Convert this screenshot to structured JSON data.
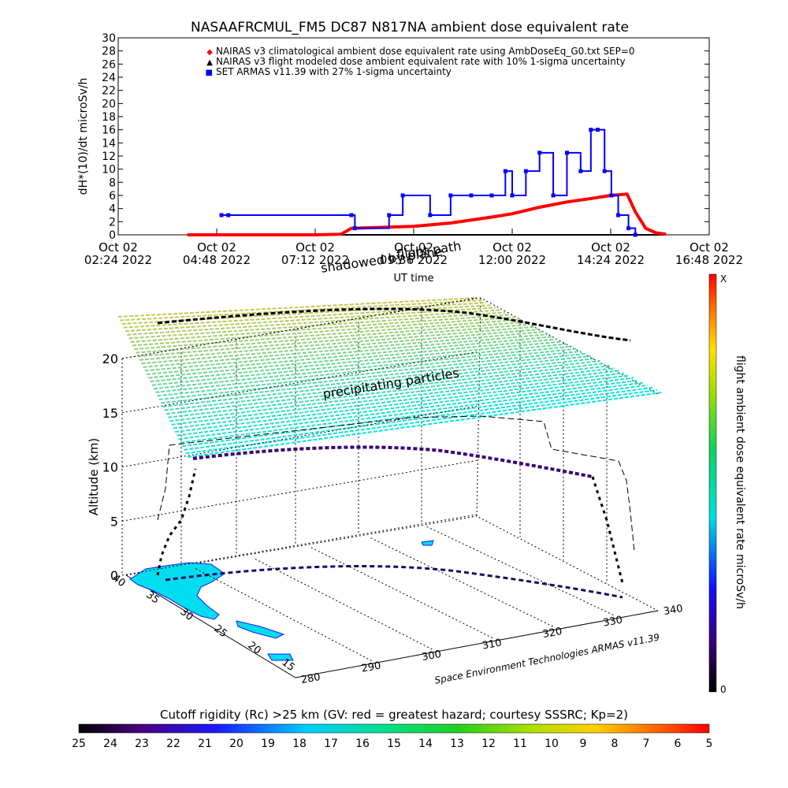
{
  "chart_data": [
    {
      "type": "line",
      "title": "NASAAFRCMUL_FM5 DC87 N817NA ambient dose equivalent rate",
      "ylabel": "dH*(10)/dt microSv/h",
      "xlabel": "UT time",
      "ylim": [
        0,
        30
      ],
      "yticks": [
        "0",
        "2",
        "4",
        "6",
        "8",
        "10",
        "12",
        "14",
        "16",
        "18",
        "20",
        "22",
        "24",
        "26",
        "28",
        "30"
      ],
      "xticks": [
        {
          "date": "Oct 02",
          "time": "02:24 2022"
        },
        {
          "date": "Oct 02",
          "time": "04:48 2022"
        },
        {
          "date": "Oct 02",
          "time": "07:12 2022"
        },
        {
          "date": "Oct 02",
          "time": "09:36 2022"
        },
        {
          "date": "Oct 02",
          "time": "12:00 2022"
        },
        {
          "date": "Oct 02",
          "time": "14:24 2022"
        },
        {
          "date": "Oct 02",
          "time": "16:48 2022"
        }
      ],
      "legend": [
        {
          "marker": "◆",
          "color": "#ff0000",
          "label": "NAIRAS v3 climatological ambient dose equivalent rate using AmbDoseEq_G0.txt SEP=0"
        },
        {
          "marker": "▲",
          "color": "#000000",
          "label": "NAIRAS v3 flight modeled dose ambient equivalent rate with 10% 1-sigma uncertainty"
        },
        {
          "marker": "■",
          "color": "#0000ff",
          "label": "SET ARMAS v11.39 with 27% 1-sigma uncertainty"
        }
      ],
      "legend_position": "top-right",
      "series": [
        {
          "name": "NAIRAS v3 climatological ambient dose equivalent rate using AmbDoseEq_G0.txt SEP=0",
          "color": "#ff0000",
          "x": [
            "04:05",
            "07:12",
            "07:50",
            "08:05",
            "09:36",
            "10:30",
            "11:30",
            "12:00",
            "12:40",
            "13:20",
            "14:00",
            "14:24",
            "14:48",
            "15:00",
            "15:15",
            "15:30",
            "15:45"
          ],
          "values": [
            0,
            0,
            0.1,
            1,
            1.3,
            1.8,
            2.7,
            3.2,
            4.2,
            5.0,
            5.6,
            6.0,
            6.2,
            3.5,
            1.0,
            0.3,
            0.1
          ]
        },
        {
          "name": "SET ARMAS v11.39 with 27% 1-sigma uncertainty",
          "color": "#0000ff",
          "x": [
            "04:55",
            "05:05",
            "08:05",
            "08:10",
            "09:00",
            "09:20",
            "10:00",
            "10:30",
            "11:00",
            "11:30",
            "11:50",
            "12:00",
            "12:20",
            "12:40",
            "13:00",
            "13:20",
            "13:40",
            "13:55",
            "14:05",
            "14:15",
            "14:25",
            "14:35",
            "14:50",
            "15:00"
          ],
          "values": [
            3,
            3,
            3,
            1,
            3,
            6,
            3,
            6,
            6,
            6,
            9.7,
            6,
            9.7,
            12.5,
            6,
            12.5,
            9.7,
            16,
            16,
            9.7,
            6,
            3,
            1,
            0
          ]
        }
      ]
    },
    {
      "type": "scatter",
      "title": "",
      "xlabel": "Space Environment Technologies ARMAS v11.39",
      "ylabel": "Altitude (km)",
      "zticks": [
        "0",
        "5",
        "10",
        "15",
        "20"
      ],
      "lat_ticks": [
        "40",
        "35",
        "30",
        "25",
        "20",
        "15"
      ],
      "lon_ticks": [
        "280",
        "290",
        "300",
        "310",
        "320",
        "330",
        "340"
      ],
      "annotations": [
        "flight path",
        "shadowed by plane",
        "precipitating particles"
      ],
      "colorbar": {
        "label": "flight ambient dose equivalent rate microSv/h",
        "min": "0",
        "max": "X"
      }
    }
  ],
  "cutoff_legend": {
    "label": "Cutoff rigidity (Rc) >25 km (GV: red = greatest hazard; courtesy SSSRC; Kp=2)",
    "ticks": [
      "25",
      "24",
      "23",
      "22",
      "21",
      "20",
      "19",
      "18",
      "17",
      "16",
      "15",
      "14",
      "13",
      "12",
      "11",
      "10",
      "9",
      "8",
      "7",
      "6",
      "5"
    ]
  }
}
